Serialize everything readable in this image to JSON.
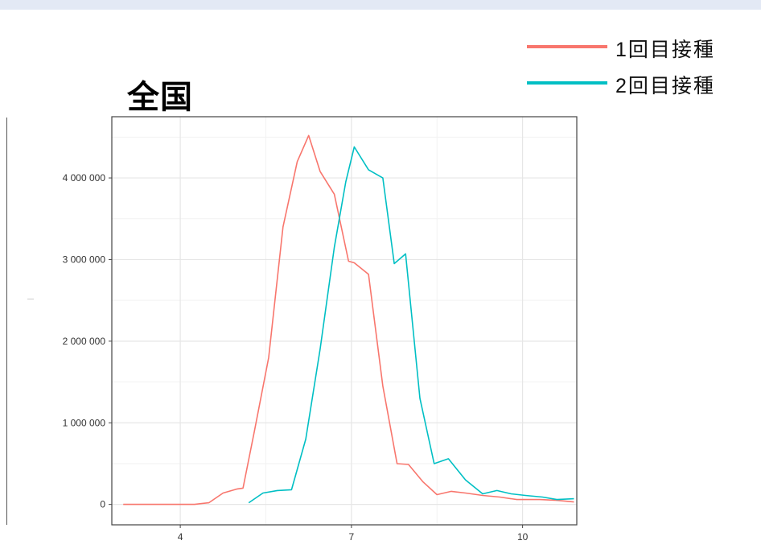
{
  "chart_data": {
    "type": "line",
    "title": "全国",
    "xlabel": "",
    "ylabel": "",
    "xlim": [
      2.8,
      10.95
    ],
    "ylim": [
      -250000,
      4750000
    ],
    "x_ticks": [
      4,
      7,
      10
    ],
    "x_tick_labels": [
      "4",
      "7",
      "10"
    ],
    "y_ticks": [
      0,
      1000000,
      2000000,
      3000000,
      4000000
    ],
    "y_tick_labels": [
      "0",
      "1 000 000",
      "2 000 000",
      "3 000 000",
      "4 000 000"
    ],
    "grid": true,
    "legend_position": "top-right",
    "series": [
      {
        "name": "1回目接種",
        "color": "#f8766d",
        "x": [
          3.0,
          3.25,
          3.5,
          3.75,
          4.0,
          4.25,
          4.5,
          4.75,
          5.0,
          5.1,
          5.3,
          5.55,
          5.8,
          6.05,
          6.25,
          6.45,
          6.7,
          6.95,
          7.05,
          7.3,
          7.55,
          7.8,
          8.0,
          8.25,
          8.5,
          8.75,
          9.0,
          9.3,
          9.6,
          9.9,
          10.3,
          10.6,
          10.9
        ],
        "values": [
          0,
          0,
          0,
          0,
          0,
          0,
          20000,
          140000,
          190000,
          200000,
          900000,
          1800000,
          3400000,
          4200000,
          4520000,
          4080000,
          3800000,
          2980000,
          2960000,
          2820000,
          1450000,
          500000,
          490000,
          280000,
          120000,
          160000,
          140000,
          110000,
          90000,
          60000,
          60000,
          50000,
          30000
        ]
      },
      {
        "name": "2回目接種",
        "color": "#00bfc4",
        "x": [
          5.2,
          5.45,
          5.7,
          5.95,
          6.2,
          6.45,
          6.7,
          6.9,
          7.05,
          7.3,
          7.55,
          7.75,
          7.95,
          8.2,
          8.45,
          8.7,
          9.0,
          9.3,
          9.55,
          9.8,
          10.05,
          10.35,
          10.6,
          10.9
        ],
        "values": [
          20000,
          140000,
          170000,
          180000,
          800000,
          1900000,
          3150000,
          3950000,
          4380000,
          4100000,
          4000000,
          2950000,
          3070000,
          1300000,
          500000,
          560000,
          300000,
          130000,
          170000,
          130000,
          110000,
          90000,
          60000,
          70000
        ]
      }
    ]
  }
}
